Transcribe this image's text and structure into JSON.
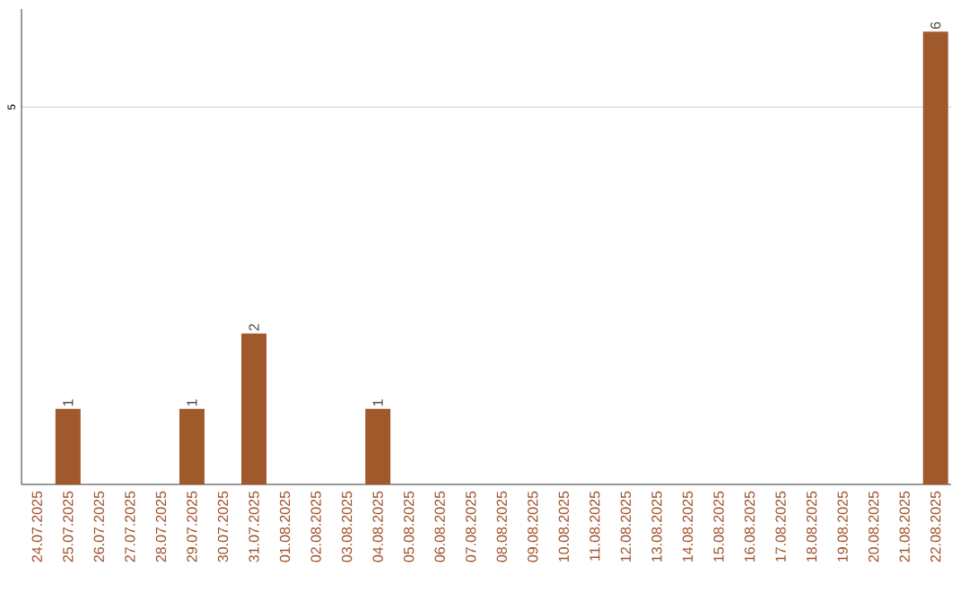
{
  "chart_data": {
    "type": "bar",
    "categories": [
      "24.07.2025",
      "25.07.2025",
      "26.07.2025",
      "27.07.2025",
      "28.07.2025",
      "29.07.2025",
      "30.07.2025",
      "31.07.2025",
      "01.08.2025",
      "02.08.2025",
      "03.08.2025",
      "04.08.2025",
      "05.08.2025",
      "06.08.2025",
      "07.08.2025",
      "08.08.2025",
      "09.08.2025",
      "10.08.2025",
      "11.08.2025",
      "12.08.2025",
      "13.08.2025",
      "14.08.2025",
      "15.08.2025",
      "16.08.2025",
      "17.08.2025",
      "18.08.2025",
      "19.08.2025",
      "20.08.2025",
      "21.08.2025",
      "22.08.2025"
    ],
    "values": [
      0,
      1,
      0,
      0,
      0,
      1,
      0,
      2,
      0,
      0,
      0,
      1,
      0,
      0,
      0,
      0,
      0,
      0,
      0,
      0,
      0,
      0,
      0,
      0,
      0,
      0,
      0,
      0,
      0,
      6
    ],
    "value_labels": [
      null,
      "1",
      null,
      null,
      null,
      "1",
      null,
      "2",
      null,
      null,
      null,
      "1",
      null,
      null,
      null,
      null,
      null,
      null,
      null,
      null,
      null,
      null,
      null,
      null,
      null,
      null,
      null,
      null,
      null,
      "6"
    ],
    "color": "#a0592a",
    "ylim": [
      0,
      6.3
    ],
    "yticks": [
      5
    ],
    "grid": "y"
  }
}
